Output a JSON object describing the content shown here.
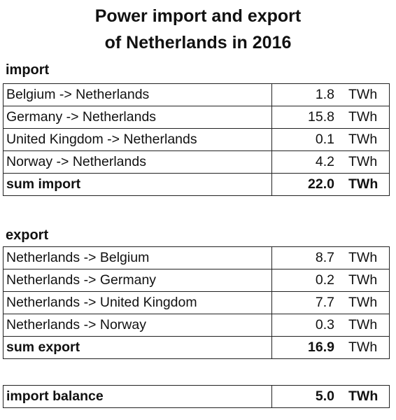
{
  "title": [
    "Power import and export",
    "of Netherlands in 2016"
  ],
  "import": {
    "heading": "import",
    "rows": [
      [
        "Belgium -> Netherlands",
        "1.8",
        "TWh"
      ],
      [
        "Germany -> Netherlands",
        "15.8",
        "TWh"
      ],
      [
        "United Kingdom -> Netherlands",
        "0.1",
        "TWh"
      ],
      [
        "Norway -> Netherlands",
        "4.2",
        "TWh"
      ]
    ],
    "sum": [
      "sum import",
      "22.0",
      "TWh"
    ]
  },
  "export": {
    "heading": "export",
    "rows": [
      [
        "Netherlands -> Belgium",
        "8.7",
        "TWh"
      ],
      [
        "Netherlands -> Germany",
        "0.2",
        "TWh"
      ],
      [
        "Netherlands -> United Kingdom",
        "7.7",
        "TWh"
      ],
      [
        "Netherlands -> Norway",
        "0.3",
        "TWh"
      ]
    ],
    "sum": [
      "sum export",
      "16.9",
      "TWh"
    ]
  },
  "balance": [
    "import balance",
    "5.0",
    "TWh"
  ]
}
